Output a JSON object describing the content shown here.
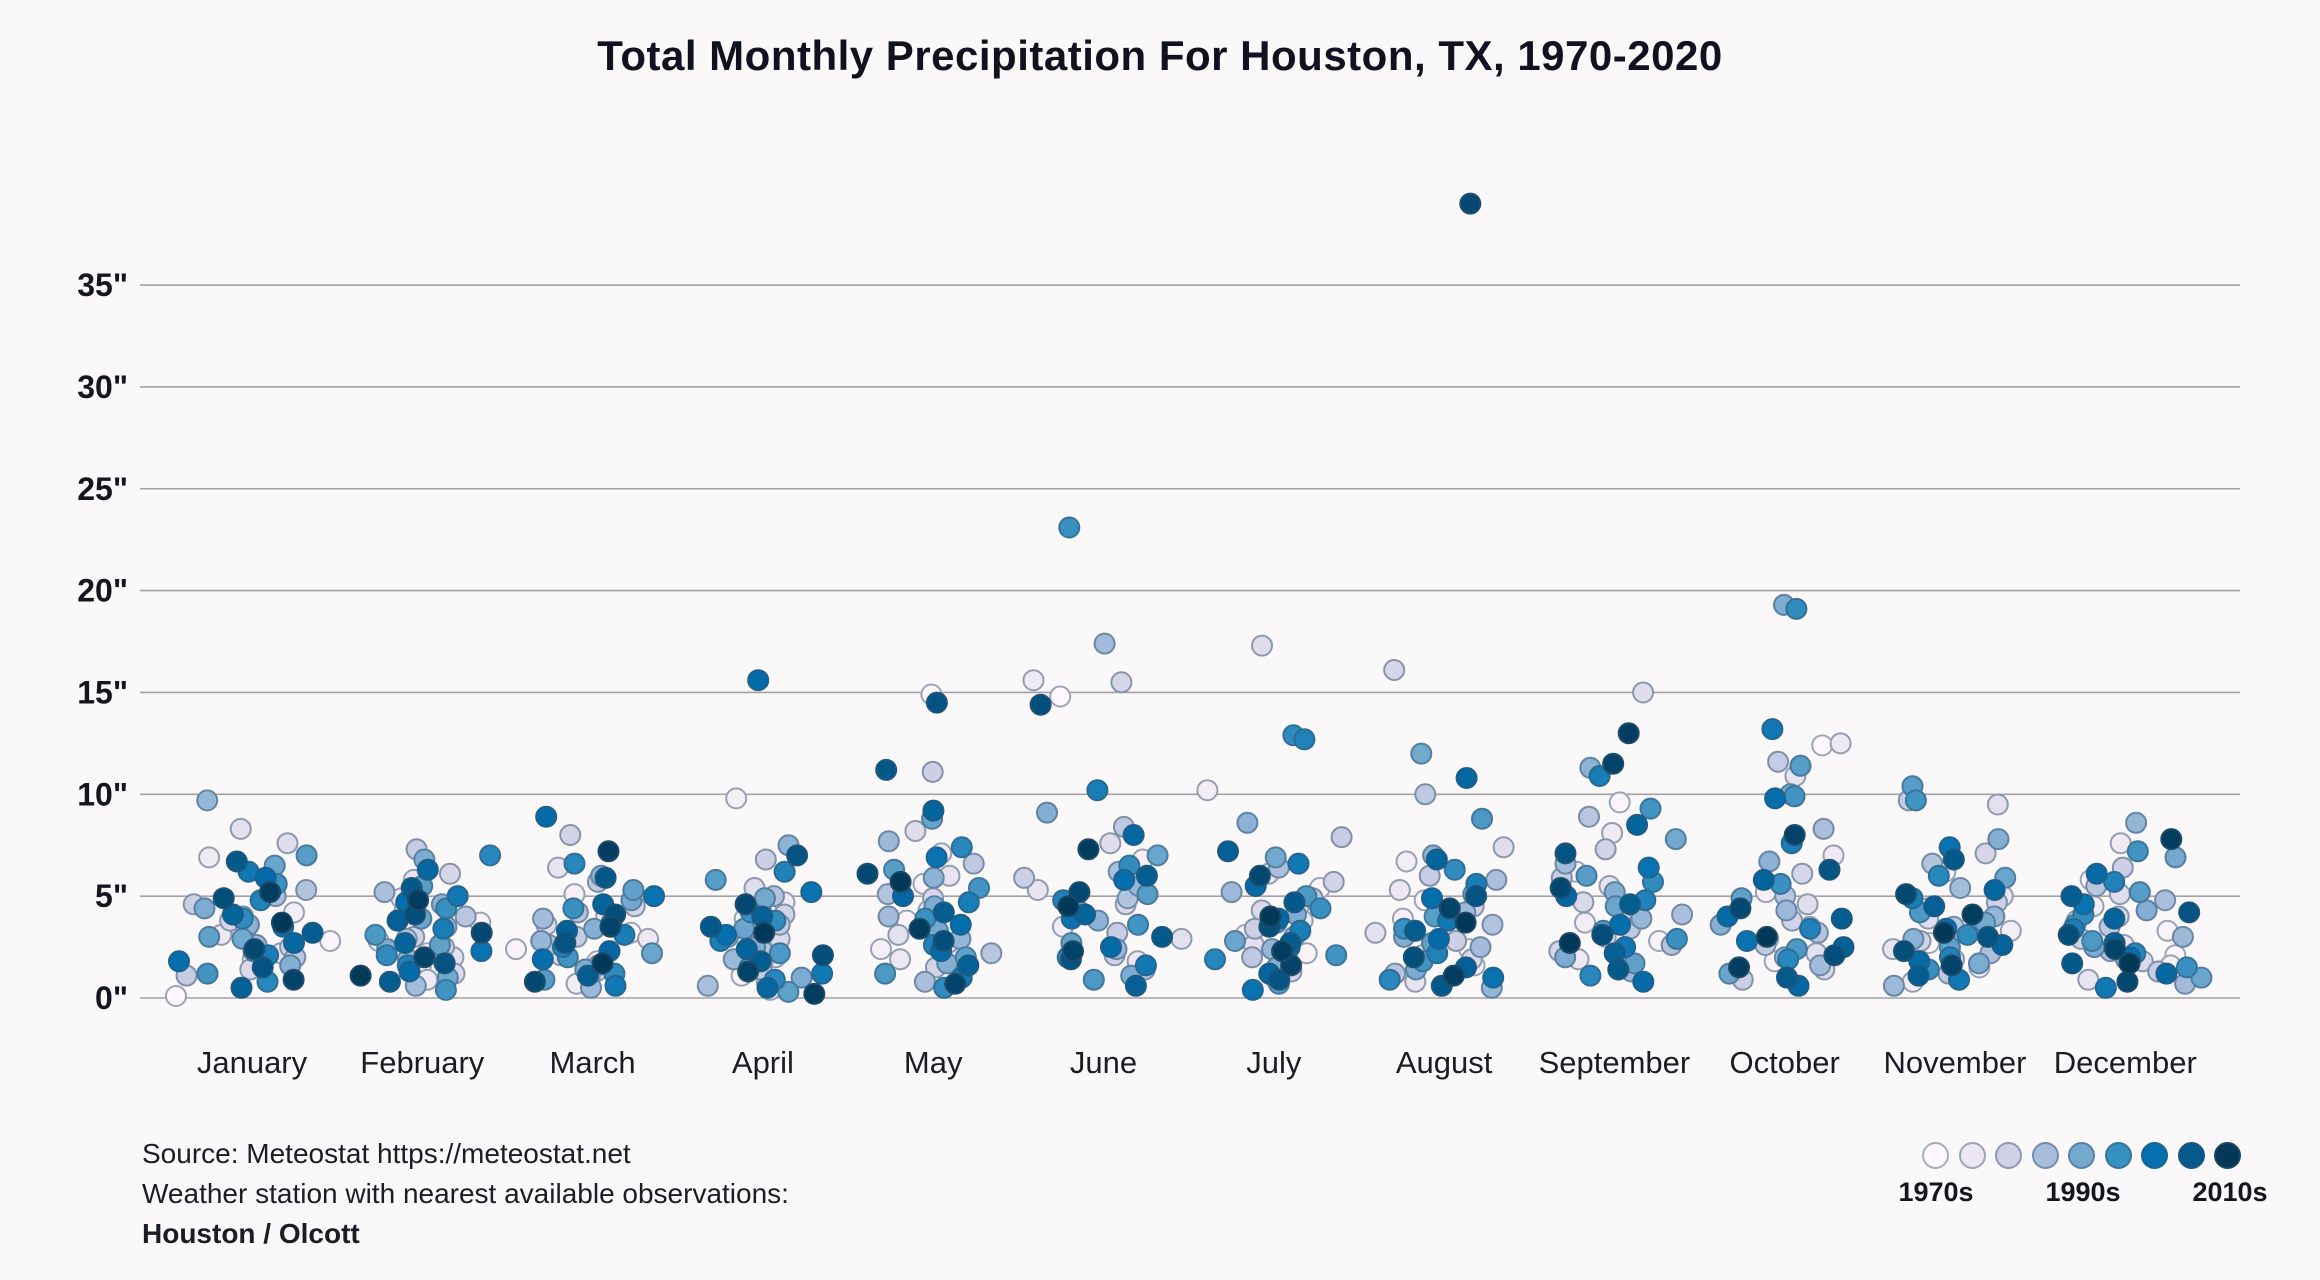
{
  "title": "Total Monthly Precipitation For Houston, TX, 1970-2020",
  "source": {
    "line1": "Source: Meteostat https://meteostat.net",
    "line2": "Weather station with nearest available observations:",
    "line3": "Houston / Olcott"
  },
  "legend": {
    "labels": [
      "1970s",
      "1990s",
      "2010s"
    ],
    "swatches": [
      "#fff7fb",
      "#ece7f2",
      "#d0d1e6",
      "#a6bddb",
      "#74a9cf",
      "#3690c0",
      "#0570b0",
      "#045a8d",
      "#023858"
    ]
  },
  "colors": {
    "background": "#fbf8fa",
    "gridline": "#a3a1a4",
    "text": "#15151f",
    "point_stroke_mix": "#36546e"
  },
  "chart_data": {
    "type": "scatter",
    "variant": "jittered-strip",
    "title": "Total Monthly Precipitation For Houston, TX, 1970-2020",
    "categories": [
      "January",
      "February",
      "March",
      "April",
      "May",
      "June",
      "July",
      "August",
      "September",
      "October",
      "November",
      "December"
    ],
    "y_ticks": [
      "0\"",
      "5\"",
      "10\"",
      "15\"",
      "20\"",
      "25\"",
      "30\"",
      "35\""
    ],
    "y_unit": "inches",
    "ylim": [
      0,
      40
    ],
    "grid": true,
    "legend_position": "bottom-right",
    "color_encoding": {
      "field": "year",
      "domain": [
        1970,
        2020
      ],
      "scale_labels": [
        "1970s",
        "1990s",
        "2010s"
      ]
    },
    "year_start": 1970,
    "points_note": "values_by_year: index 0 = 1970 ... index 50 = 2020, total monthly precipitation in inches",
    "points": {
      "January": [
        0.1,
        2.8,
        3.4,
        1.9,
        4.2,
        6.9,
        3.1,
        2.2,
        8.3,
        7.6,
        1.4,
        3.8,
        2.5,
        4.6,
        1.1,
        3.3,
        2.0,
        5.3,
        5.0,
        4.0,
        2.6,
        9.7,
        3.6,
        1.6,
        4.4,
        2.9,
        6.5,
        3.0,
        7.0,
        2.3,
        1.2,
        5.6,
        3.9,
        0.8,
        4.8,
        2.1,
        6.2,
        3.5,
        1.8,
        5.9,
        2.7,
        4.1,
        0.5,
        3.2,
        6.7,
        1.5,
        4.9,
        2.4,
        0.9,
        5.2,
        3.7
      ],
      "February": [
        2.2,
        3.7,
        1.5,
        4.9,
        2.8,
        0.9,
        3.3,
        5.8,
        2.0,
        4.3,
        1.2,
        6.1,
        3.0,
        2.5,
        7.3,
        1.8,
        4.0,
        2.9,
        5.2,
        0.6,
        3.5,
        1.9,
        4.6,
        2.4,
        6.8,
        1.0,
        3.9,
        2.6,
        5.5,
        3.1,
        0.4,
        4.4,
        2.1,
        7.0,
        1.6,
        3.4,
        5.0,
        2.3,
        4.7,
        1.3,
        6.3,
        2.7,
        3.8,
        0.8,
        5.4,
        1.7,
        4.1,
        3.2,
        2.0,
        4.8,
        1.1
      ],
      "March": [
        1.8,
        3.2,
        2.4,
        5.1,
        0.7,
        4.0,
        2.9,
        6.4,
        1.3,
        3.6,
        2.1,
        4.5,
        8.0,
        1.0,
        3.0,
        5.7,
        2.6,
        4.2,
        1.6,
        3.9,
        0.5,
        2.8,
        6.0,
        3.4,
        1.4,
        4.8,
        2.2,
        5.3,
        0.9,
        3.7,
        2.0,
        4.4,
        1.2,
        6.6,
        2.5,
        3.1,
        0.6,
        5.0,
        1.9,
        8.9,
        2.3,
        4.6,
        3.3,
        1.1,
        5.9,
        2.7,
        4.1,
        0.8,
        3.5,
        7.2,
        1.7
      ],
      "April": [
        2.6,
        1.1,
        3.9,
        9.8,
        0.4,
        4.7,
        2.0,
        3.3,
        1.7,
        5.4,
        2.9,
        0.8,
        4.1,
        6.8,
        1.4,
        3.6,
        2.3,
        5.0,
        0.6,
        4.4,
        1.9,
        3.0,
        7.5,
        2.5,
        1.0,
        4.9,
        3.4,
        0.3,
        5.8,
        2.2,
        1.5,
        4.2,
        3.8,
        0.9,
        6.2,
        2.8,
        1.2,
        5.2,
        3.1,
        15.6,
        0.5,
        2.4,
        4.0,
        1.8,
        3.5,
        7.0,
        2.1,
        4.6,
        1.3,
        0.2,
        3.2
      ],
      "May": [
        14.9,
        3.8,
        5.6,
        2.4,
        7.1,
        4.3,
        1.9,
        6.0,
        3.1,
        8.2,
        2.7,
        4.9,
        1.5,
        11.1,
        3.5,
        6.6,
        2.2,
        5.1,
        0.8,
        4.0,
        7.7,
        2.9,
        5.9,
        1.7,
        4.5,
        3.3,
        8.8,
        2.0,
        6.3,
        1.2,
        5.4,
        3.9,
        0.5,
        7.4,
        2.6,
        4.7,
        1.0,
        6.9,
        3.6,
        2.3,
        5.0,
        9.2,
        1.6,
        4.2,
        11.2,
        14.5,
        2.8,
        6.1,
        0.7,
        3.4,
        5.7
      ],
      "June": [
        14.8,
        4.2,
        2.6,
        6.8,
        3.5,
        15.6,
        1.8,
        5.3,
        2.9,
        7.6,
        4.6,
        15.5,
        2.1,
        5.9,
        3.2,
        8.4,
        1.4,
        4.9,
        6.2,
        17.4,
        2.4,
        5.5,
        3.8,
        9.1,
        1.1,
        4.4,
        7.0,
        2.7,
        5.1,
        0.9,
        3.6,
        23.1,
        6.5,
        2.0,
        4.8,
        10.2,
        1.6,
        3.9,
        5.8,
        2.5,
        8.0,
        4.1,
        0.6,
        6.0,
        3.0,
        1.9,
        14.4,
        5.2,
        2.3,
        7.3,
        4.5
      ],
      "July": [
        3.1,
        5.4,
        2.2,
        4.6,
        10.2,
        1.7,
        3.8,
        6.1,
        2.6,
        17.3,
        4.3,
        1.3,
        5.7,
        3.4,
        7.9,
        2.0,
        4.9,
        1.0,
        6.4,
        3.0,
        5.2,
        2.4,
        8.6,
        1.5,
        4.1,
        6.9,
        2.8,
        3.7,
        0.7,
        5.0,
        2.1,
        4.4,
        12.9,
        1.9,
        12.7,
        3.3,
        6.6,
        0.4,
        2.5,
        5.5,
        3.9,
        1.2,
        7.2,
        2.7,
        4.7,
        0.9,
        3.5,
        6.0,
        1.6,
        2.3,
        4.0
      ],
      "August": [
        2.4,
        4.8,
        1.6,
        3.9,
        6.7,
        2.1,
        5.3,
        0.8,
        3.2,
        7.4,
        1.9,
        16.1,
        4.5,
        2.8,
        6.0,
        10.0,
        1.2,
        3.6,
        5.8,
        2.5,
        4.2,
        0.5,
        7.0,
        3.0,
        1.4,
        12.0,
        5.1,
        2.7,
        4.0,
        8.8,
        1.8,
        3.4,
        6.3,
        0.9,
        2.2,
        5.6,
        3.8,
        1.0,
        4.9,
        2.9,
        10.8,
        6.8,
        1.5,
        3.3,
        0.6,
        5.0,
        2.0,
        39.0,
        4.4,
        1.1,
        3.7
      ],
      "September": [
        4.3,
        9.6,
        2.8,
        6.2,
        3.7,
        8.1,
        1.9,
        5.5,
        3.0,
        15.0,
        4.7,
        2.3,
        7.3,
        1.6,
        5.9,
        3.4,
        8.9,
        2.6,
        4.1,
        6.6,
        1.3,
        3.9,
        11.3,
        5.2,
        2.0,
        7.8,
        4.5,
        1.7,
        6.0,
        3.3,
        9.3,
        2.9,
        5.7,
        1.1,
        4.8,
        10.9,
        2.5,
        6.4,
        3.6,
        0.8,
        5.0,
        8.5,
        2.2,
        4.6,
        1.4,
        7.1,
        3.1,
        5.4,
        11.5,
        13.0,
        2.7
      ],
      "October": [
        12.4,
        3.5,
        1.8,
        5.2,
        2.9,
        7.0,
        12.5,
        10.9,
        2.2,
        4.6,
        1.4,
        6.1,
        3.8,
        0.9,
        11.6,
        2.6,
        5.0,
        3.2,
        8.3,
        1.6,
        4.3,
        2.0,
        6.7,
        3.6,
        19.3,
        10.0,
        1.2,
        4.9,
        11.4,
        2.4,
        9.9,
        5.6,
        19.1,
        1.9,
        3.4,
        7.6,
        13.2,
        2.8,
        9.8,
        4.0,
        0.6,
        5.8,
        2.5,
        3.9,
        1.0,
        6.3,
        2.1,
        4.4,
        8.0,
        1.5,
        3.0
      ],
      "November": [
        2.7,
        4.4,
        1.5,
        6.2,
        3.3,
        0.8,
        5.0,
        2.4,
        9.5,
        3.9,
        1.9,
        7.1,
        2.8,
        4.7,
        9.7,
        1.2,
        3.5,
        6.6,
        2.2,
        5.4,
        0.6,
        4.0,
        2.9,
        7.8,
        1.7,
        3.7,
        5.9,
        2.5,
        10.4,
        4.2,
        9.7,
        1.4,
        3.1,
        6.0,
        2.0,
        4.9,
        0.9,
        7.4,
        3.4,
        1.8,
        5.3,
        2.6,
        4.5,
        1.1,
        6.8,
        3.0,
        2.3,
        5.1,
        1.6,
        4.1,
        3.2
      ],
      "December": [
        2.1,
        5.8,
        3.3,
        1.6,
        4.5,
        7.6,
        2.6,
        0.9,
        3.8,
        5.1,
        1.8,
        4.0,
        2.9,
        6.4,
        1.3,
        3.5,
        5.5,
        2.3,
        4.8,
        0.7,
        3.0,
        8.6,
        1.9,
        4.3,
        2.5,
        6.9,
        1.0,
        3.6,
        5.2,
        2.8,
        7.2,
        1.5,
        4.1,
        2.2,
        5.7,
        3.4,
        0.5,
        4.6,
        2.0,
        6.1,
        1.2,
        3.9,
        2.7,
        5.0,
        1.7,
        4.2,
        3.1,
        0.8,
        2.4,
        7.8,
        1.7
      ]
    }
  }
}
